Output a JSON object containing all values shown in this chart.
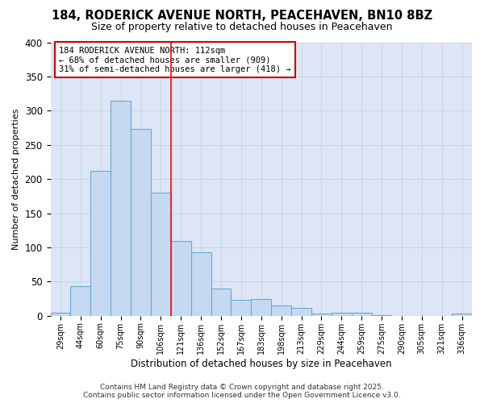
{
  "title_line1": "184, RODERICK AVENUE NORTH, PEACEHAVEN, BN10 8BZ",
  "title_line2": "Size of property relative to detached houses in Peacehaven",
  "xlabel": "Distribution of detached houses by size in Peacehaven",
  "ylabel": "Number of detached properties",
  "categories": [
    "29sqm",
    "44sqm",
    "60sqm",
    "75sqm",
    "90sqm",
    "106sqm",
    "121sqm",
    "136sqm",
    "152sqm",
    "167sqm",
    "183sqm",
    "198sqm",
    "213sqm",
    "229sqm",
    "244sqm",
    "259sqm",
    "275sqm",
    "290sqm",
    "305sqm",
    "321sqm",
    "336sqm"
  ],
  "values": [
    4,
    43,
    212,
    315,
    273,
    180,
    109,
    93,
    40,
    23,
    24,
    15,
    12,
    3,
    5,
    4,
    1,
    0,
    0,
    0,
    3
  ],
  "bar_color": "#c5d9f0",
  "bar_edge_color": "#6aaad4",
  "red_line_index": 6.0,
  "annotation_line1": "184 RODERICK AVENUE NORTH: 112sqm",
  "annotation_line2": "← 68% of detached houses are smaller (909)",
  "annotation_line3": "31% of semi-detached houses are larger (418) →",
  "ylim": [
    0,
    400
  ],
  "yticks": [
    0,
    50,
    100,
    150,
    200,
    250,
    300,
    350,
    400
  ],
  "grid_color": "#c8d4e8",
  "plot_bg_color": "#dce6f5",
  "fig_bg_color": "#ffffff",
  "annotation_box_facecolor": "#ffffff",
  "annotation_box_edgecolor": "#cc0000",
  "footer_line1": "Contains HM Land Registry data © Crown copyright and database right 2025.",
  "footer_line2": "Contains public sector information licensed under the Open Government Licence v3.0."
}
